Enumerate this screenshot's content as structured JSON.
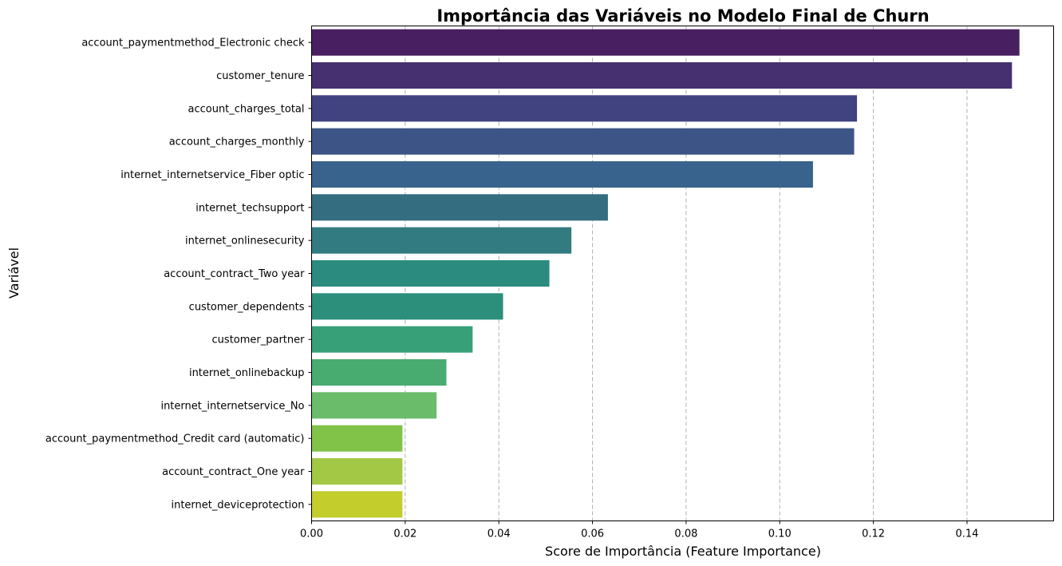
{
  "chart_data": {
    "type": "bar",
    "orientation": "horizontal",
    "title": "Importância das Variáveis no Modelo Final de Churn",
    "xlabel": "Score de Importância (Feature Importance)",
    "ylabel": "Variável",
    "xlim": [
      0,
      0.1585
    ],
    "xticks": [
      0.0,
      0.02,
      0.04,
      0.06,
      0.08,
      0.1,
      0.12,
      0.14
    ],
    "xtick_labels": [
      "0.00",
      "0.02",
      "0.04",
      "0.06",
      "0.08",
      "0.10",
      "0.12",
      "0.14"
    ],
    "grid": "x-axis, dashed",
    "palette": "viridis",
    "categories": [
      "account_paymentmethod_Electronic check",
      "customer_tenure",
      "account_charges_total",
      "account_charges_monthly",
      "internet_internetservice_Fiber optic",
      "internet_techsupport",
      "internet_onlinesecurity",
      "account_contract_Two year",
      "customer_dependents",
      "customer_partner",
      "internet_onlinebackup",
      "internet_internetservice_No",
      "account_paymentmethod_Credit card (automatic)",
      "account_contract_One year",
      "internet_deviceprotection"
    ],
    "values": [
      0.1512,
      0.1496,
      0.1165,
      0.1159,
      0.1071,
      0.0633,
      0.0555,
      0.0508,
      0.0409,
      0.0344,
      0.0288,
      0.0267,
      0.0194,
      0.0194,
      0.0194
    ],
    "colors": [
      "#481f61",
      "#46306f",
      "#414380",
      "#3d5586",
      "#38638c",
      "#346d80",
      "#327b81",
      "#2b8b7e",
      "#2b8f7b",
      "#38a079",
      "#48ab70",
      "#6abc6a",
      "#81c349",
      "#a3c845",
      "#c3cd2b"
    ]
  }
}
